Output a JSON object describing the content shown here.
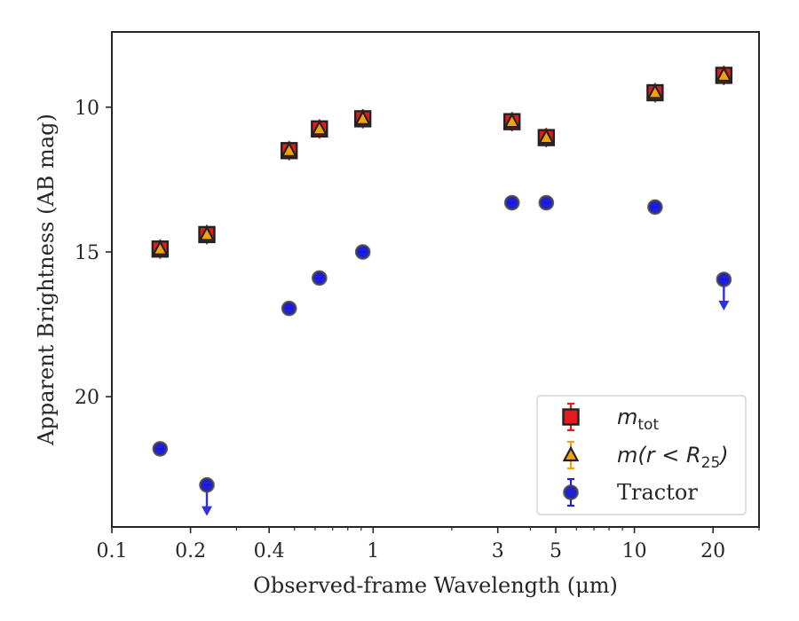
{
  "chart_data": {
    "type": "scatter",
    "xlabel": "Observed-frame Wavelength (μm)",
    "ylabel": "Apparent Brightness (AB mag)",
    "x_scale": "log",
    "xlim": [
      0.1,
      30
    ],
    "ylim": [
      24.5,
      7.4
    ],
    "y_inverted": true,
    "grid": false,
    "legend_position": "lower-right",
    "x_ticks": [
      {
        "value": 0.1,
        "label": "0.1"
      },
      {
        "value": 0.2,
        "label": "0.2"
      },
      {
        "value": 0.4,
        "label": "0.4"
      },
      {
        "value": 1,
        "label": "1"
      },
      {
        "value": 3,
        "label": "3"
      },
      {
        "value": 5,
        "label": "5"
      },
      {
        "value": 10,
        "label": "10"
      },
      {
        "value": 20,
        "label": "20"
      }
    ],
    "y_ticks": [
      {
        "value": 10,
        "label": "10"
      },
      {
        "value": 15,
        "label": "15"
      },
      {
        "value": 20,
        "label": "20"
      }
    ],
    "series": [
      {
        "name": "m_tot",
        "legend": {
          "main": "m",
          "sub": "tot"
        },
        "marker": "square",
        "color": "#e41a1c",
        "x": [
          0.153,
          0.231,
          0.477,
          0.623,
          0.913,
          3.4,
          4.6,
          12.0,
          22.0
        ],
        "y": [
          14.9,
          14.4,
          11.5,
          10.75,
          10.4,
          10.5,
          11.05,
          9.5,
          8.9
        ],
        "upper_limits": [
          false,
          false,
          false,
          false,
          false,
          false,
          false,
          false,
          false
        ]
      },
      {
        "name": "m(r < R_25)",
        "legend": {
          "main": "m(r < R",
          "sub": "25",
          "tail": ")"
        },
        "marker": "triangle",
        "color": "#f0a30a",
        "x": [
          0.153,
          0.231,
          0.477,
          0.623,
          0.913,
          3.4,
          4.6,
          12.0,
          22.0
        ],
        "y": [
          14.9,
          14.4,
          11.5,
          10.75,
          10.4,
          10.5,
          11.05,
          9.5,
          8.9
        ],
        "upper_limits": [
          false,
          false,
          false,
          false,
          false,
          false,
          false,
          false,
          false
        ]
      },
      {
        "name": "Tractor",
        "legend": {
          "main": "Tractor"
        },
        "marker": "circle",
        "color": "#1f1fd6",
        "x": [
          0.153,
          0.231,
          0.477,
          0.623,
          0.913,
          3.4,
          4.6,
          12.0,
          22.0
        ],
        "y": [
          21.8,
          23.05,
          16.95,
          15.9,
          15.0,
          13.3,
          13.3,
          13.45,
          15.95
        ],
        "upper_limits": [
          false,
          true,
          false,
          false,
          false,
          false,
          false,
          false,
          true
        ]
      }
    ]
  }
}
